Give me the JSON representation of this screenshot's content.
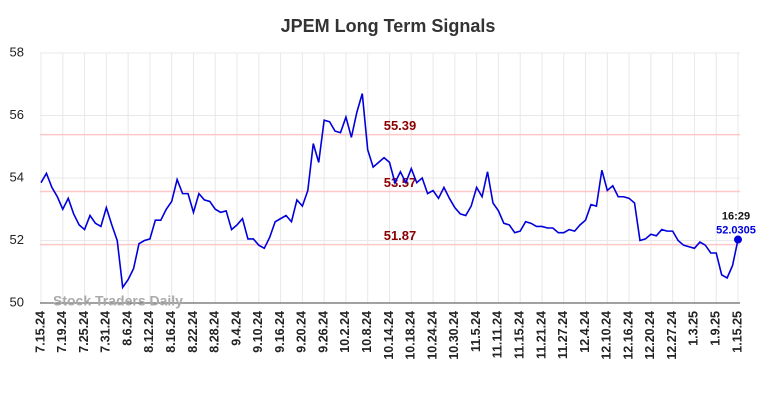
{
  "chart_data": {
    "type": "line",
    "title": "JPEM Long Term Signals",
    "categories": [
      "7.15.24",
      null,
      null,
      null,
      "7.19.24",
      null,
      null,
      null,
      "7.25.24",
      null,
      null,
      null,
      "7.31.24",
      null,
      null,
      null,
      "8.6.24",
      null,
      null,
      null,
      "8.12.24",
      null,
      null,
      null,
      "8.16.24",
      null,
      null,
      null,
      "8.22.24",
      null,
      null,
      null,
      "8.28.24",
      null,
      null,
      null,
      "9.4.24",
      null,
      null,
      null,
      "9.10.24",
      null,
      null,
      null,
      "9.16.24",
      null,
      null,
      null,
      "9.20.24",
      null,
      null,
      null,
      "9.26.24",
      null,
      null,
      null,
      "10.2.24",
      null,
      null,
      null,
      "10.8.24",
      null,
      null,
      null,
      "10.14.24",
      null,
      null,
      null,
      "10.18.24",
      null,
      null,
      null,
      "10.24.24",
      null,
      null,
      null,
      "10.30.24",
      null,
      null,
      null,
      "11.5.24",
      null,
      null,
      null,
      "11.11.24",
      null,
      null,
      null,
      "11.15.24",
      null,
      null,
      null,
      "11.21.24",
      null,
      null,
      null,
      "11.27.24",
      null,
      null,
      null,
      "12.4.24",
      null,
      null,
      null,
      "12.10.24",
      null,
      null,
      null,
      "12.16.24",
      null,
      null,
      null,
      "12.20.24",
      null,
      null,
      null,
      "12.27.24",
      null,
      null,
      null,
      "1.3.25",
      null,
      null,
      null,
      "1.9.25",
      null,
      null,
      null,
      "1.15.25"
    ],
    "series": [
      {
        "color": "#0000dd",
        "values": [
          53.85,
          54.15,
          53.7,
          53.4,
          53.0,
          53.35,
          52.85,
          52.5,
          52.35,
          52.8,
          52.55,
          52.45,
          53.05,
          52.5,
          52.0,
          50.5,
          50.75,
          51.1,
          51.9,
          52.0,
          52.05,
          52.65,
          52.65,
          53.0,
          53.25,
          53.95,
          53.5,
          53.5,
          52.9,
          53.5,
          53.3,
          53.25,
          53.0,
          52.9,
          52.95,
          52.35,
          52.5,
          52.7,
          52.05,
          52.05,
          51.85,
          51.75,
          52.1,
          52.6,
          52.7,
          52.8,
          52.6,
          53.3,
          53.1,
          53.6,
          55.1,
          54.5,
          55.85,
          55.8,
          55.5,
          55.45,
          55.95,
          55.3,
          56.1,
          56.7,
          54.9,
          54.35,
          54.5,
          54.65,
          54.5,
          53.85,
          54.2,
          53.85,
          54.3,
          53.85,
          54.0,
          53.5,
          53.6,
          53.35,
          53.7,
          53.35,
          53.05,
          52.85,
          52.8,
          53.1,
          53.7,
          53.4,
          54.2,
          53.2,
          52.95,
          52.55,
          52.5,
          52.25,
          52.3,
          52.6,
          52.55,
          52.45,
          52.45,
          52.4,
          52.4,
          52.25,
          52.25,
          52.35,
          52.3,
          52.5,
          52.65,
          53.15,
          53.1,
          54.25,
          53.6,
          53.75,
          53.4,
          53.4,
          53.35,
          53.2,
          52.0,
          52.05,
          52.2,
          52.15,
          52.35,
          52.3,
          52.3,
          52.0,
          51.85,
          51.8,
          51.75,
          51.95,
          51.85,
          51.6,
          51.6,
          50.9,
          50.8,
          51.2,
          52.0305
        ]
      }
    ],
    "ylim": [
      50,
      58
    ],
    "yticks": [
      50,
      52,
      54,
      56,
      58
    ],
    "grid": true,
    "signal_lines": [
      55.39,
      53.57,
      51.87
    ],
    "signal_color": "#ffc8c8",
    "signal_label_color": "#8b0000",
    "last_time": "16:29",
    "watermark": "Stock Traders Daily"
  }
}
